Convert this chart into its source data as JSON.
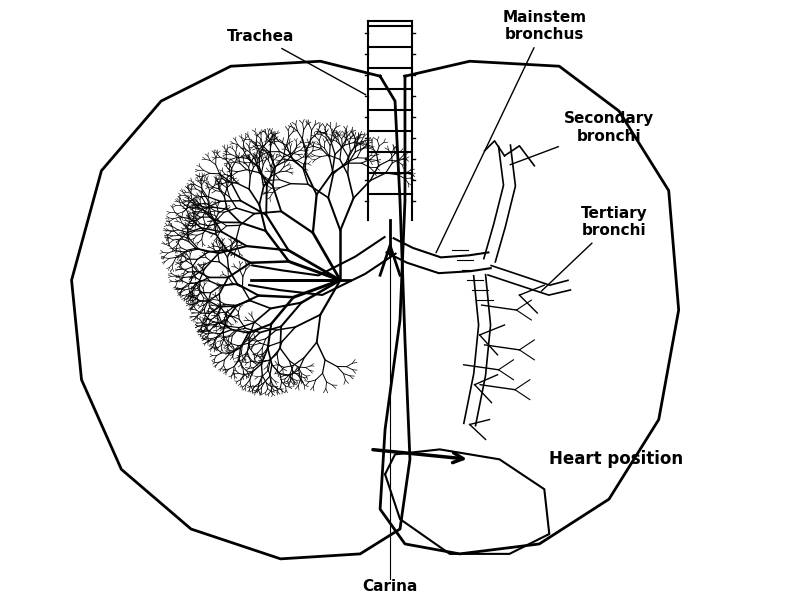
{
  "bg_color": "#ffffff",
  "line_color": "#000000",
  "labels": {
    "trachea": "Trachea",
    "mainstem": "Mainstem\nbronchus",
    "secondary": "Secondary\nbronchi",
    "tertiary": "Tertiary\nbronchi",
    "carina": "Carina",
    "heart": "Heart position"
  },
  "label_fontsize": 11,
  "label_fontweight": "bold",
  "figsize": [
    7.98,
    6.13
  ],
  "dpi": 100
}
